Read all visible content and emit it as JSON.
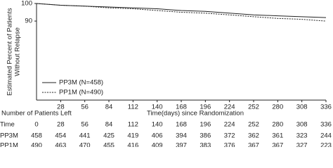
{
  "chart_data": {
    "type": "line",
    "ylabel": [
      "Estimated Percent of Patients",
      "Without Relapse"
    ],
    "xlabel": "Time(days) since Randomization",
    "x": [
      0,
      28,
      56,
      84,
      112,
      140,
      168,
      196,
      224,
      252,
      280,
      308,
      336
    ],
    "series": [
      {
        "name": "PP3M (N=458)",
        "color": "#222222",
        "dash": "solid",
        "values": [
          100,
          99,
          98.5,
          98,
          97.5,
          97,
          96,
          95.5,
          94.5,
          93.5,
          93,
          92.5,
          92
        ]
      },
      {
        "name": "PP1M (N=490)",
        "color": "#222222",
        "dash": "dotted",
        "values": [
          100,
          99,
          98.5,
          97.5,
          97,
          96,
          95,
          94.5,
          93.5,
          92.5,
          91.5,
          91,
          90
        ]
      }
    ],
    "xlim": [
      0,
      336
    ],
    "xticks": [
      28,
      56,
      84,
      112,
      140,
      168,
      196,
      224,
      252,
      280,
      308,
      336
    ],
    "ylim": [
      45,
      100
    ],
    "yticks": [
      90,
      100
    ],
    "legend": "lower-left"
  },
  "risk_table": {
    "title": "Number of Patients Left",
    "time_label": "Time",
    "times": [
      0,
      28,
      56,
      84,
      112,
      140,
      168,
      196,
      224,
      252,
      280,
      308,
      336
    ],
    "rows": [
      {
        "label": "PP3M",
        "values": [
          458,
          454,
          441,
          425,
          419,
          406,
          394,
          386,
          372,
          362,
          361,
          323,
          244
        ]
      },
      {
        "label": "PP1M",
        "values": [
          490,
          463,
          470,
          455,
          416,
          409,
          397,
          383,
          376,
          367,
          367,
          327,
          223
        ]
      }
    ]
  }
}
